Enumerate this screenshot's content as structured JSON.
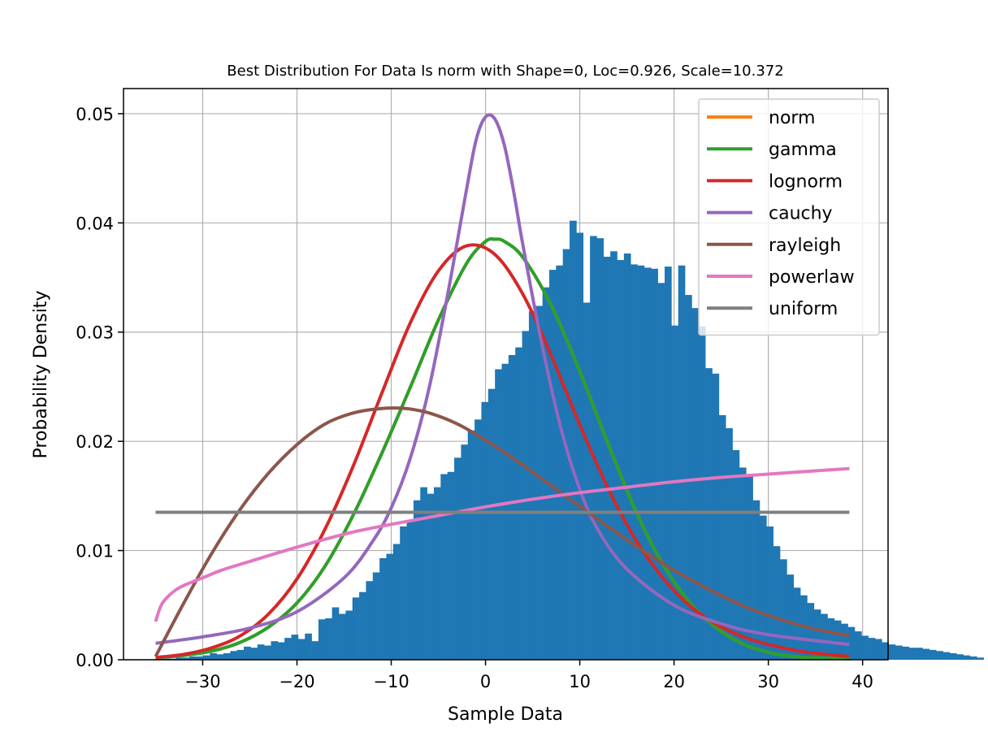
{
  "chart_data": {
    "type": "histogram-with-fitted-curves",
    "title": "Best Distribution For Data Is norm with Shape=0, Loc=0.926, Scale=10.372",
    "xlabel": "Sample Data",
    "ylabel": "Probability Density",
    "xlim": [
      -38.4,
      42.7
    ],
    "ylim": [
      0,
      0.0523
    ],
    "xticks": [
      -30,
      -20,
      -10,
      0,
      10,
      20,
      30,
      40
    ],
    "xtick_labels": [
      "−30",
      "−20",
      "−10",
      "0",
      "10",
      "20",
      "30",
      "40"
    ],
    "yticks": [
      0,
      0.01,
      0.02,
      0.03,
      0.04,
      0.05
    ],
    "ytick_labels": [
      "0.00",
      "0.01",
      "0.02",
      "0.03",
      "0.04",
      "0.05"
    ],
    "grid": true,
    "legend_position": "top-right",
    "bar_color": "#1f77b4",
    "histogram": {
      "bin_start": -35.0,
      "bin_width": 0.72,
      "densities": [
        0.0001,
        0.0001,
        0.0001,
        0.0002,
        0.0002,
        0.0003,
        0.0003,
        0.0004,
        0.0006,
        0.0005,
        0.0006,
        0.0008,
        0.0009,
        0.0012,
        0.0011,
        0.0014,
        0.0013,
        0.0017,
        0.0016,
        0.002,
        0.0023,
        0.0019,
        0.0024,
        0.0017,
        0.0037,
        0.0038,
        0.0048,
        0.0042,
        0.0045,
        0.0057,
        0.0062,
        0.0072,
        0.008,
        0.0093,
        0.0097,
        0.0106,
        0.0122,
        0.0128,
        0.0146,
        0.0158,
        0.0152,
        0.0158,
        0.017,
        0.0172,
        0.0185,
        0.0197,
        0.021,
        0.022,
        0.0236,
        0.0248,
        0.0266,
        0.0271,
        0.0279,
        0.0286,
        0.0301,
        0.0319,
        0.0324,
        0.0341,
        0.0357,
        0.0361,
        0.0376,
        0.0402,
        0.0391,
        0.0327,
        0.0388,
        0.0386,
        0.0369,
        0.0374,
        0.0366,
        0.0372,
        0.0362,
        0.0361,
        0.0359,
        0.0358,
        0.0345,
        0.036,
        0.0306,
        0.0361,
        0.0334,
        0.0322,
        0.0305,
        0.0267,
        0.0262,
        0.0224,
        0.0212,
        0.0192,
        0.0176,
        0.0168,
        0.0146,
        0.0132,
        0.0122,
        0.0104,
        0.0092,
        0.0078,
        0.0066,
        0.0059,
        0.0052,
        0.0046,
        0.0042,
        0.0038,
        0.0036,
        0.0033,
        0.003,
        0.0026,
        0.0022,
        0.002,
        0.0019,
        0.0016,
        0.0014,
        0.0013,
        0.0012,
        0.0011,
        0.0011,
        0.001,
        0.0009,
        0.0008,
        0.0007,
        0.0006,
        0.0005,
        0.0004,
        0.0003,
        0.0002
      ]
    },
    "series": [
      {
        "name": "norm",
        "color": "#ff7f0e",
        "x": [
          -35.0,
          -32.0,
          -29.0,
          -26.0,
          -23.0,
          -20.0,
          -17.0,
          -14.0,
          -11.0,
          -8.0,
          -5.0,
          -2.0,
          0.0,
          1.0,
          2.0,
          4.0,
          7.0,
          10.0,
          13.0,
          16.0,
          19.0,
          22.0,
          25.0,
          28.0,
          31.0,
          34.0,
          38.6
        ],
        "y": [
          0.0002,
          0.0004,
          0.0008,
          0.0016,
          0.003,
          0.0052,
          0.0086,
          0.0133,
          0.0189,
          0.0249,
          0.0311,
          0.0363,
          0.0383,
          0.0385,
          0.0383,
          0.0368,
          0.0324,
          0.0264,
          0.0198,
          0.0135,
          0.0085,
          0.0049,
          0.0026,
          0.0012,
          0.0005,
          0.0002,
          0.0001
        ]
      },
      {
        "name": "gamma",
        "color": "#2ca02c",
        "x": [
          -35.0,
          -32.0,
          -29.0,
          -26.0,
          -23.0,
          -20.0,
          -17.0,
          -14.0,
          -11.0,
          -8.0,
          -5.0,
          -2.0,
          0.0,
          1.0,
          2.0,
          4.0,
          7.0,
          10.0,
          13.0,
          16.0,
          19.0,
          22.0,
          25.0,
          28.0,
          31.0,
          34.0,
          38.6
        ],
        "y": [
          0.0002,
          0.0004,
          0.0008,
          0.0016,
          0.003,
          0.0052,
          0.0086,
          0.0133,
          0.0189,
          0.0249,
          0.0311,
          0.0363,
          0.0383,
          0.0385,
          0.0383,
          0.0368,
          0.0324,
          0.0264,
          0.0198,
          0.0135,
          0.0085,
          0.0049,
          0.0026,
          0.0012,
          0.0005,
          0.0002,
          0.0001
        ]
      },
      {
        "name": "lognorm",
        "color": "#d62728",
        "x": [
          -35.0,
          -32.0,
          -29.0,
          -26.0,
          -23.0,
          -20.0,
          -17.0,
          -14.0,
          -11.0,
          -8.0,
          -5.0,
          -2.0,
          1.0,
          4.0,
          7.0,
          10.0,
          13.0,
          16.0,
          19.0,
          22.0,
          25.0,
          28.0,
          31.0,
          34.0,
          38.6
        ],
        "y": [
          0.0002,
          0.0005,
          0.0011,
          0.0022,
          0.0042,
          0.0074,
          0.012,
          0.0178,
          0.0244,
          0.0308,
          0.0356,
          0.0379,
          0.0371,
          0.0334,
          0.0278,
          0.0215,
          0.0157,
          0.0109,
          0.0073,
          0.0047,
          0.003,
          0.0019,
          0.0012,
          0.0007,
          0.0003
        ]
      },
      {
        "name": "cauchy",
        "color": "#9467bd",
        "x": [
          -35.0,
          -30.0,
          -25.0,
          -20.0,
          -15.0,
          -12.0,
          -10.0,
          -8.0,
          -6.0,
          -4.0,
          -2.0,
          -1.0,
          0.0,
          1.0,
          2.0,
          3.0,
          4.0,
          6.0,
          8.0,
          10.0,
          12.0,
          15.0,
          20.0,
          25.0,
          30.0,
          38.6
        ],
        "y": [
          0.0015,
          0.0021,
          0.0029,
          0.0044,
          0.0075,
          0.0108,
          0.0139,
          0.0184,
          0.0248,
          0.0335,
          0.0431,
          0.0476,
          0.0497,
          0.0495,
          0.0471,
          0.0428,
          0.0378,
          0.0288,
          0.0212,
          0.0156,
          0.0118,
          0.0083,
          0.005,
          0.0033,
          0.0023,
          0.0014
        ]
      },
      {
        "name": "rayleigh",
        "color": "#8c564b",
        "x": [
          -35.0,
          -32.0,
          -29.0,
          -26.0,
          -23.0,
          -20.0,
          -17.0,
          -14.0,
          -11.0,
          -8.5,
          -6.0,
          -3.0,
          0.0,
          4.0,
          8.0,
          12.0,
          16.0,
          20.0,
          24.0,
          28.0,
          32.0,
          35.0,
          38.6
        ],
        "y": [
          0.0003,
          0.0052,
          0.0098,
          0.0138,
          0.0171,
          0.0197,
          0.0216,
          0.0226,
          0.023,
          0.023,
          0.0226,
          0.0216,
          0.0201,
          0.0178,
          0.0153,
          0.0128,
          0.0104,
          0.0082,
          0.0063,
          0.0047,
          0.0035,
          0.0028,
          0.0022
        ]
      },
      {
        "name": "powerlaw",
        "color": "#e377c2",
        "x": [
          -35.0,
          -34.5,
          -34.0,
          -33.0,
          -32.0,
          -30.0,
          -28.0,
          -25.0,
          -22.0,
          -18.0,
          -14.0,
          -10.0,
          -5.0,
          0.0,
          5.0,
          10.0,
          15.0,
          20.0,
          25.0,
          30.0,
          35.0,
          38.6
        ],
        "y": [
          0.0035,
          0.0048,
          0.0055,
          0.0063,
          0.0068,
          0.0075,
          0.0082,
          0.009,
          0.0098,
          0.0108,
          0.0117,
          0.0124,
          0.0132,
          0.014,
          0.0147,
          0.0153,
          0.0158,
          0.0163,
          0.0167,
          0.017,
          0.0173,
          0.0175
        ]
      },
      {
        "name": "uniform",
        "color": "#7f7f7f",
        "x": [
          -35.0,
          38.6
        ],
        "y": [
          0.0135,
          0.0135
        ]
      }
    ]
  }
}
